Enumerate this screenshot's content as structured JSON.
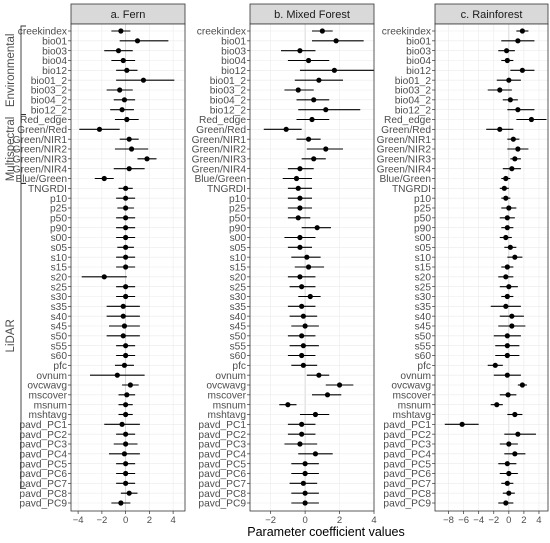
{
  "figure": {
    "xlabel": "Parameter coefficient values",
    "groups": [
      {
        "label": "Environmental",
        "from": 0,
        "to": 8
      },
      {
        "label": "Multispectral",
        "from": 9,
        "to": 15
      },
      {
        "label": "LiDAR",
        "from": 16,
        "to": 46
      }
    ],
    "colors": {
      "point": "#000000",
      "strip": "#d9d9d9",
      "grid": "#ebebeb",
      "zero": "#cfcfcf",
      "text": "#4d4d4d"
    }
  },
  "chart_data": [
    {
      "type": "scatter",
      "title": "a. Fern",
      "xlim": [
        -4.6,
        5.0
      ],
      "xticks": [
        -4,
        -2,
        0,
        2,
        4
      ],
      "categories": [
        "creekindex",
        "bio01",
        "bio03",
        "bio04",
        "bio12",
        "bio01_2",
        "bio03_2",
        "bio04_2",
        "bio12_2",
        "Red_edge",
        "Green/Red",
        "Green/NIR1",
        "Green/NIR2",
        "Green/NIR3",
        "Green/NIR4",
        "Blue/Green",
        "TNGRDI",
        "p10",
        "p25",
        "p50",
        "p90",
        "s00",
        "s05",
        "s10",
        "s15",
        "s20",
        "s25",
        "s30",
        "s35",
        "s40",
        "s45",
        "s50",
        "s55",
        "s60",
        "pfc",
        "ovnum",
        "ovcwavg",
        "mscover",
        "msnum",
        "mshtavg",
        "pavd_PC1",
        "pavd_PC2",
        "pavd_PC3",
        "pavd_PC4",
        "pavd_PC5",
        "pavd_PC6",
        "pavd_PC7",
        "pavd_PC8",
        "pavd_PC9"
      ],
      "estimate": [
        -0.4,
        1.0,
        -0.6,
        -0.2,
        0.1,
        1.5,
        -0.5,
        -0.1,
        -0.3,
        0.1,
        -2.2,
        0.3,
        0.5,
        1.8,
        0.3,
        -1.8,
        0,
        0,
        0,
        0,
        0,
        0,
        0,
        0,
        0,
        -1.8,
        0,
        0,
        -0.2,
        -0.2,
        -0.1,
        -0.2,
        0,
        0,
        -0.1,
        -0.7,
        0.4,
        0.1,
        0,
        0,
        -0.3,
        0,
        0,
        -0.1,
        0,
        0,
        0,
        0.3,
        -0.4
      ],
      "lower": [
        -1.2,
        -0.5,
        -1.8,
        -1.2,
        -0.8,
        -0.8,
        -1.6,
        -1.0,
        -1.3,
        -0.9,
        -3.9,
        -0.5,
        -0.9,
        1.0,
        -1.0,
        -2.6,
        -0.6,
        -0.8,
        -0.7,
        -0.8,
        -0.8,
        -0.8,
        -0.7,
        -0.8,
        -0.8,
        -3.7,
        -0.8,
        -0.8,
        -1.6,
        -1.6,
        -1.4,
        -1.6,
        -0.8,
        -0.8,
        -0.9,
        -3.0,
        -0.3,
        -0.6,
        -0.6,
        -0.6,
        -1.8,
        -0.8,
        -1.0,
        -1.4,
        -0.8,
        -0.8,
        -0.8,
        -0.4,
        -1.2
      ],
      "upper": [
        0.4,
        3.6,
        0.6,
        0.8,
        1.0,
        4.1,
        0.6,
        0.8,
        0.7,
        1.1,
        -0.5,
        1.1,
        1.9,
        2.6,
        1.6,
        -1.0,
        0.6,
        0.8,
        0.7,
        0.8,
        0.8,
        0.8,
        0.7,
        0.8,
        0.8,
        0.1,
        0.8,
        0.8,
        1.2,
        1.2,
        1.2,
        1.2,
        0.8,
        0.8,
        0.7,
        1.6,
        1.1,
        0.8,
        0.6,
        0.6,
        1.2,
        0.8,
        1.0,
        1.2,
        0.8,
        0.8,
        0.8,
        1.0,
        0.4
      ]
    },
    {
      "type": "scatter",
      "title": "b. Mixed Forest",
      "xlim": [
        -3.2,
        4.0
      ],
      "xticks": [
        -2,
        0,
        2,
        4
      ],
      "categories": [
        "creekindex",
        "bio01",
        "bio03",
        "bio04",
        "bio12",
        "bio01_2",
        "bio03_2",
        "bio04_2",
        "bio12_2",
        "Red_edge",
        "Green/Red",
        "Green/NIR1",
        "Green/NIR2",
        "Green/NIR3",
        "Green/NIR4",
        "Blue/Green",
        "TNGRDI",
        "p10",
        "p25",
        "p50",
        "p90",
        "s00",
        "s05",
        "s10",
        "s15",
        "s20",
        "s25",
        "s30",
        "s35",
        "s40",
        "s45",
        "s50",
        "s55",
        "s60",
        "pfc",
        "ovnum",
        "ovcwavg",
        "mscover",
        "msnum",
        "mshtavg",
        "pavd_PC1",
        "pavd_PC2",
        "pavd_PC3",
        "pavd_PC4",
        "pavd_PC5",
        "pavd_PC6",
        "pavd_PC7",
        "pavd_PC8",
        "pavd_PC9"
      ],
      "estimate": [
        1.0,
        1.8,
        -0.3,
        0.2,
        1.7,
        0.8,
        -0.4,
        0.5,
        1.2,
        0.4,
        -1.1,
        0.2,
        1.2,
        0.5,
        -0.3,
        -0.5,
        -0.4,
        -0.3,
        -0.3,
        -0.4,
        0.7,
        -0.3,
        -0.3,
        0.1,
        0.2,
        -0.3,
        -0.2,
        0.3,
        -0.2,
        -0.1,
        0,
        -0.2,
        -0.1,
        -0.2,
        -0.1,
        0.8,
        2.0,
        1.3,
        -1.0,
        0.6,
        -0.2,
        -0.2,
        -0.3,
        0.6,
        0,
        0,
        -0.1,
        0,
        0
      ],
      "upper": [
        1.6,
        3.4,
        0.6,
        1.4,
        4.0,
        2.2,
        0.5,
        1.4,
        3.2,
        1.4,
        -0.2,
        0.9,
        2.2,
        1.2,
        0.5,
        0.4,
        0.4,
        0.4,
        0.4,
        0.3,
        1.5,
        0.6,
        0.4,
        0.9,
        1.1,
        0.6,
        0.6,
        0.9,
        0.6,
        0.7,
        0.8,
        0.6,
        0.8,
        0.6,
        0.7,
        1.4,
        2.8,
        2.1,
        -0.5,
        1.4,
        0.6,
        0.6,
        0.7,
        1.6,
        0.8,
        0.8,
        0.7,
        0.8,
        0.8
      ],
      "lower": [
        0.4,
        0.4,
        -1.4,
        -1.0,
        -0.3,
        -0.6,
        -1.2,
        -0.5,
        -0.4,
        -0.5,
        -2.4,
        -0.5,
        0.1,
        -0.2,
        -1.0,
        -1.3,
        -1.0,
        -1.0,
        -1.0,
        -1.0,
        -0.2,
        -1.2,
        -1.0,
        -0.8,
        -0.6,
        -1.0,
        -0.9,
        -0.4,
        -1.0,
        -0.9,
        -0.8,
        -1.0,
        -0.9,
        -1.0,
        -0.8,
        0.1,
        1.2,
        0.4,
        -1.5,
        -0.3,
        -1.0,
        -1.0,
        -1.2,
        -0.4,
        -0.8,
        -0.8,
        -0.9,
        -0.8,
        -0.8
      ]
    },
    {
      "type": "scatter",
      "title": "c. Rainforest",
      "xlim": [
        -9.8,
        5.2
      ],
      "xticks": [
        -8,
        -6,
        -4,
        -2,
        0,
        2,
        4
      ],
      "categories": [
        "creekindex",
        "bio01",
        "bio03",
        "bio04",
        "bio12",
        "bio01_2",
        "bio03_2",
        "bio04_2",
        "bio12_2",
        "Red_edge",
        "Green/Red",
        "Green/NIR1",
        "Green/NIR2",
        "Green/NIR3",
        "Green/NIR4",
        "Blue/Green",
        "TNGRDI",
        "p10",
        "p25",
        "p50",
        "p90",
        "s00",
        "s05",
        "s10",
        "s15",
        "s20",
        "s25",
        "s30",
        "s35",
        "s40",
        "s45",
        "s50",
        "s55",
        "s60",
        "pfc",
        "ovnum",
        "ovcwavg",
        "mscover",
        "msnum",
        "mshtavg",
        "pavd_PC1",
        "pavd_PC2",
        "pavd_PC3",
        "pavd_PC4",
        "pavd_PC5",
        "pavd_PC6",
        "pavd_PC7",
        "pavd_PC8",
        "pavd_PC9"
      ],
      "estimate": [
        1.8,
        1.2,
        -0.3,
        -0.2,
        1.8,
        0,
        -1.2,
        0.2,
        1.2,
        3.0,
        -1.2,
        0.6,
        1.2,
        0.8,
        0.4,
        -0.4,
        -0.6,
        -0.4,
        0,
        -0.2,
        -0.2,
        -0.4,
        0.2,
        0.8,
        -0.2,
        -0.4,
        0,
        -0.2,
        -0.4,
        0.4,
        0.4,
        -0.2,
        -0.2,
        -0.2,
        -1.8,
        -0.2,
        1.8,
        -0.1,
        -1.6,
        0.8,
        -6.2,
        1.2,
        0,
        0.8,
        -0.2,
        0,
        -0.2,
        0,
        -0.4
      ],
      "lower": [
        1.0,
        -1.0,
        -1.4,
        -1.0,
        0.2,
        -1.6,
        -2.8,
        -0.8,
        -0.2,
        1.0,
        -3.0,
        -0.2,
        -0.2,
        0.2,
        -0.8,
        -1.0,
        -1.2,
        -1.0,
        -1.0,
        -1.2,
        -1.0,
        -1.2,
        -0.6,
        -0.2,
        -1.0,
        -1.4,
        -1.2,
        -1.0,
        -2.4,
        -1.2,
        -1.4,
        -2.0,
        -1.8,
        -1.8,
        -2.8,
        -2.0,
        1.2,
        -1.2,
        -2.4,
        -0.2,
        -8.5,
        -0.6,
        -1.2,
        -0.6,
        -1.4,
        -1.2,
        -1.0,
        -0.8,
        -1.4
      ],
      "upper": [
        2.6,
        3.4,
        0.8,
        0.6,
        3.4,
        1.6,
        0.4,
        1.2,
        3.4,
        5.0,
        0.6,
        1.4,
        2.6,
        1.6,
        1.6,
        0.2,
        0,
        0.2,
        1.0,
        0.8,
        0.6,
        0.4,
        1.0,
        1.8,
        0.6,
        0.6,
        1.2,
        0.6,
        1.6,
        2.0,
        2.2,
        1.6,
        1.4,
        1.4,
        -0.8,
        1.6,
        2.4,
        1.0,
        -0.8,
        1.8,
        -4.0,
        3.6,
        1.2,
        2.2,
        1.0,
        1.2,
        0.6,
        0.8,
        0.6
      ]
    }
  ]
}
